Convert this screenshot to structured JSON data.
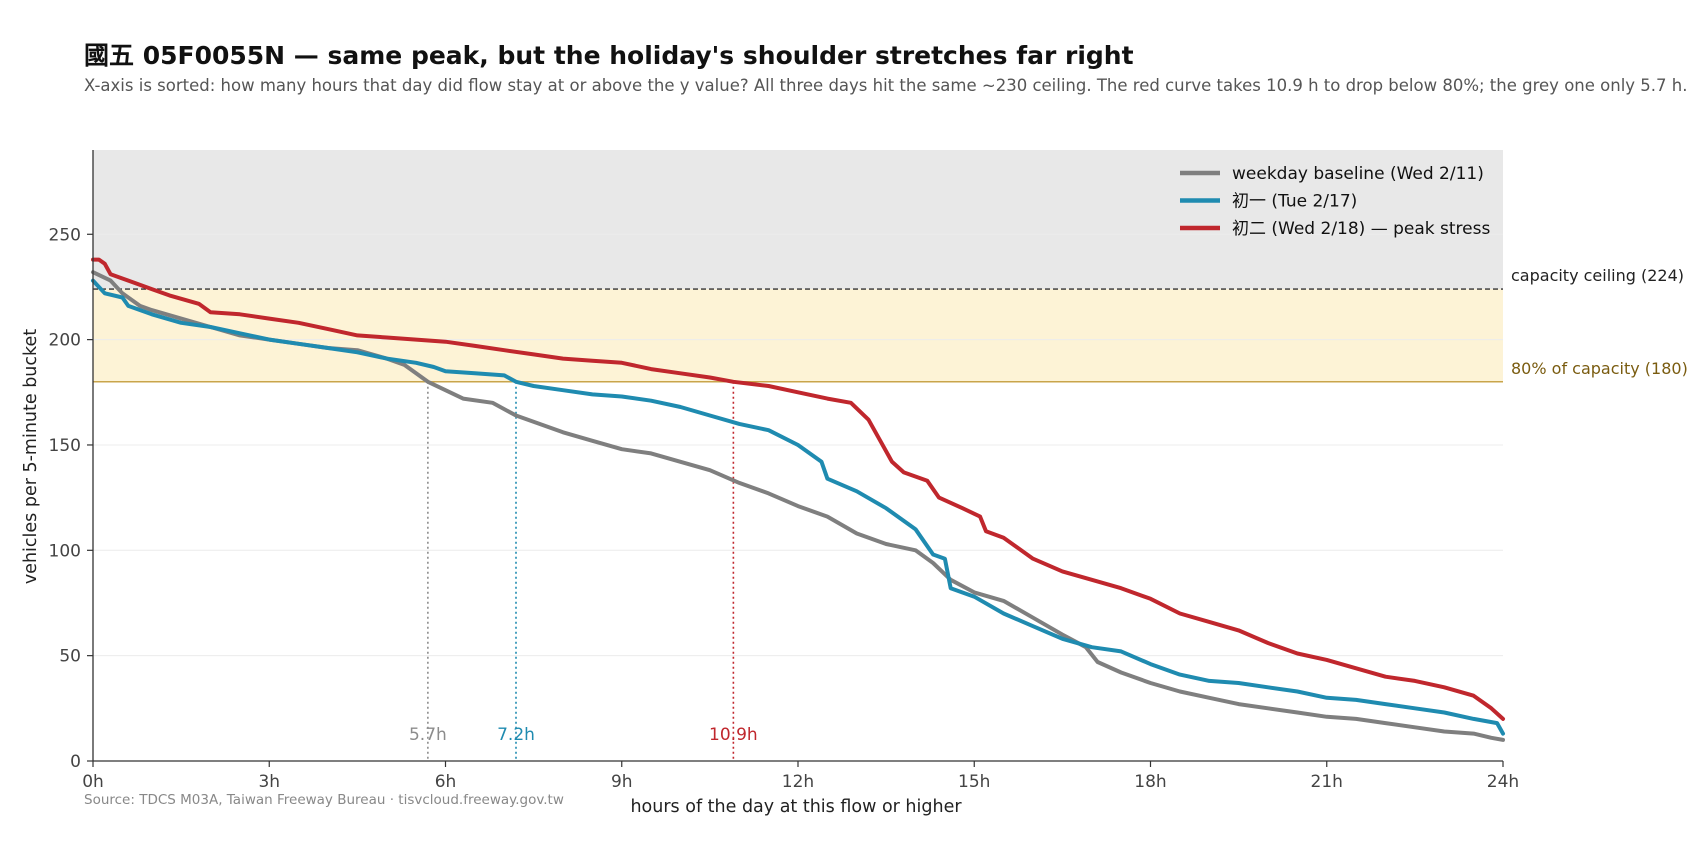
{
  "chart_data": {
    "type": "line",
    "title": "國五 05F0055N — same peak, but the holiday's shoulder stretches far right",
    "subtitle": "X-axis is sorted: how many hours that day did flow stay at or above the y value? All three days hit the same ~230 ceiling. The red curve takes 10.9 h to drop below 80%; the grey one only 5.7 h.",
    "xlabel": "hours of the day at this flow or higher",
    "ylabel": "vehicles per 5-minute bucket",
    "xlim": [
      0,
      24
    ],
    "ylim": [
      0,
      250
    ],
    "x_ticks": [
      0,
      3,
      6,
      9,
      12,
      15,
      18,
      21,
      24
    ],
    "x_tick_labels": [
      "0h",
      "3h",
      "6h",
      "9h",
      "12h",
      "15h",
      "18h",
      "21h",
      "24h"
    ],
    "y_ticks": [
      0,
      50,
      100,
      150,
      200,
      250
    ],
    "y_tick_labels": [
      "0",
      "50",
      "100",
      "150",
      "200",
      "250"
    ],
    "grid": true,
    "legend_position": "top-right",
    "capacity_ceiling": {
      "value": 224,
      "label": "capacity ceiling (224)"
    },
    "capacity_80": {
      "value": 180,
      "label": "80% of capacity (180)"
    },
    "band_colors": {
      "over_ceiling": "#e8e8e8",
      "between": "#fdf3d6",
      "line_80": "#c9a54b",
      "label_80": "#7a5c10"
    },
    "markers": [
      {
        "x": 5.7,
        "label": "5.7h",
        "color": "#8c8c8c"
      },
      {
        "x": 7.2,
        "label": "7.2h",
        "color": "#1f8bb0"
      },
      {
        "x": 10.9,
        "label": "10.9h",
        "color": "#c0272d"
      }
    ],
    "series": [
      {
        "name": "weekday baseline (Wed 2/11)",
        "color": "#7f7f7f",
        "points": [
          [
            0,
            232
          ],
          [
            0.3,
            228
          ],
          [
            0.5,
            222
          ],
          [
            0.8,
            216
          ],
          [
            1,
            214
          ],
          [
            1.5,
            210
          ],
          [
            2,
            206
          ],
          [
            2.5,
            202
          ],
          [
            3,
            200
          ],
          [
            3.5,
            198
          ],
          [
            4,
            196
          ],
          [
            4.5,
            195
          ],
          [
            5,
            191
          ],
          [
            5.3,
            188
          ],
          [
            5.5,
            184
          ],
          [
            5.7,
            180
          ],
          [
            6,
            176
          ],
          [
            6.3,
            172
          ],
          [
            6.8,
            170
          ],
          [
            7.2,
            164
          ],
          [
            7.6,
            160
          ],
          [
            8,
            156
          ],
          [
            8.5,
            152
          ],
          [
            9,
            148
          ],
          [
            9.5,
            146
          ],
          [
            10,
            142
          ],
          [
            10.5,
            138
          ],
          [
            11,
            132
          ],
          [
            11.5,
            127
          ],
          [
            12,
            121
          ],
          [
            12.5,
            116
          ],
          [
            13,
            108
          ],
          [
            13.5,
            103
          ],
          [
            14,
            100
          ],
          [
            14.3,
            94
          ],
          [
            14.6,
            86
          ],
          [
            15,
            80
          ],
          [
            15.5,
            76
          ],
          [
            16,
            68
          ],
          [
            16.5,
            60
          ],
          [
            16.9,
            54
          ],
          [
            17.1,
            47
          ],
          [
            17.5,
            42
          ],
          [
            18,
            37
          ],
          [
            18.5,
            33
          ],
          [
            19,
            30
          ],
          [
            19.5,
            27
          ],
          [
            20,
            25
          ],
          [
            20.5,
            23
          ],
          [
            21,
            21
          ],
          [
            21.5,
            20
          ],
          [
            22,
            18
          ],
          [
            22.5,
            16
          ],
          [
            23,
            14
          ],
          [
            23.5,
            13
          ],
          [
            23.8,
            11
          ],
          [
            24,
            10
          ]
        ]
      },
      {
        "name": "初一 (Tue 2/17)",
        "color": "#1f8bb0",
        "points": [
          [
            0,
            228
          ],
          [
            0.2,
            222
          ],
          [
            0.5,
            220
          ],
          [
            0.6,
            216
          ],
          [
            1,
            212
          ],
          [
            1.5,
            208
          ],
          [
            2,
            206
          ],
          [
            2.5,
            203
          ],
          [
            3,
            200
          ],
          [
            3.5,
            198
          ],
          [
            4,
            196
          ],
          [
            4.5,
            194
          ],
          [
            5,
            191
          ],
          [
            5.5,
            189
          ],
          [
            5.8,
            187
          ],
          [
            6,
            185
          ],
          [
            6.5,
            184
          ],
          [
            7,
            183
          ],
          [
            7.2,
            180
          ],
          [
            7.5,
            178
          ],
          [
            8,
            176
          ],
          [
            8.5,
            174
          ],
          [
            9,
            173
          ],
          [
            9.5,
            171
          ],
          [
            10,
            168
          ],
          [
            10.5,
            164
          ],
          [
            11,
            160
          ],
          [
            11.5,
            157
          ],
          [
            12,
            150
          ],
          [
            12.4,
            142
          ],
          [
            12.5,
            134
          ],
          [
            13,
            128
          ],
          [
            13.5,
            120
          ],
          [
            14,
            110
          ],
          [
            14.3,
            98
          ],
          [
            14.5,
            96
          ],
          [
            14.6,
            82
          ],
          [
            15,
            78
          ],
          [
            15.5,
            70
          ],
          [
            16,
            64
          ],
          [
            16.5,
            58
          ],
          [
            17,
            54
          ],
          [
            17.5,
            52
          ],
          [
            18,
            46
          ],
          [
            18.5,
            41
          ],
          [
            19,
            38
          ],
          [
            19.5,
            37
          ],
          [
            20,
            35
          ],
          [
            20.5,
            33
          ],
          [
            21,
            30
          ],
          [
            21.5,
            29
          ],
          [
            22,
            27
          ],
          [
            22.5,
            25
          ],
          [
            23,
            23
          ],
          [
            23.5,
            20
          ],
          [
            23.9,
            18
          ],
          [
            24,
            13
          ]
        ]
      },
      {
        "name": "初二 (Wed 2/18) — peak stress",
        "color": "#c0272d",
        "points": [
          [
            0,
            238
          ],
          [
            0.1,
            238
          ],
          [
            0.2,
            236
          ],
          [
            0.3,
            231
          ],
          [
            0.5,
            229
          ],
          [
            1,
            224
          ],
          [
            1.3,
            221
          ],
          [
            1.8,
            217
          ],
          [
            2,
            213
          ],
          [
            2.5,
            212
          ],
          [
            3,
            210
          ],
          [
            3.5,
            208
          ],
          [
            4,
            205
          ],
          [
            4.5,
            202
          ],
          [
            5,
            201
          ],
          [
            5.5,
            200
          ],
          [
            6,
            199
          ],
          [
            6.5,
            197
          ],
          [
            7,
            195
          ],
          [
            7.5,
            193
          ],
          [
            8,
            191
          ],
          [
            8.5,
            190
          ],
          [
            9,
            189
          ],
          [
            9.5,
            186
          ],
          [
            10,
            184
          ],
          [
            10.5,
            182
          ],
          [
            10.9,
            180
          ],
          [
            11.5,
            178
          ],
          [
            12,
            175
          ],
          [
            12.5,
            172
          ],
          [
            12.9,
            170
          ],
          [
            13.2,
            162
          ],
          [
            13.4,
            152
          ],
          [
            13.6,
            142
          ],
          [
            13.8,
            137
          ],
          [
            14.2,
            133
          ],
          [
            14.4,
            125
          ],
          [
            14.8,
            120
          ],
          [
            15.1,
            116
          ],
          [
            15.2,
            109
          ],
          [
            15.5,
            106
          ],
          [
            16,
            96
          ],
          [
            16.5,
            90
          ],
          [
            17,
            86
          ],
          [
            17.5,
            82
          ],
          [
            18,
            77
          ],
          [
            18.5,
            70
          ],
          [
            19,
            66
          ],
          [
            19.5,
            62
          ],
          [
            20,
            56
          ],
          [
            20.5,
            51
          ],
          [
            21,
            48
          ],
          [
            21.5,
            44
          ],
          [
            22,
            40
          ],
          [
            22.5,
            38
          ],
          [
            23,
            35
          ],
          [
            23.5,
            31
          ],
          [
            23.8,
            25
          ],
          [
            24,
            20
          ]
        ]
      }
    ],
    "source": "Source: TDCS M03A, Taiwan Freeway Bureau · tisvcloud.freeway.gov.tw"
  }
}
